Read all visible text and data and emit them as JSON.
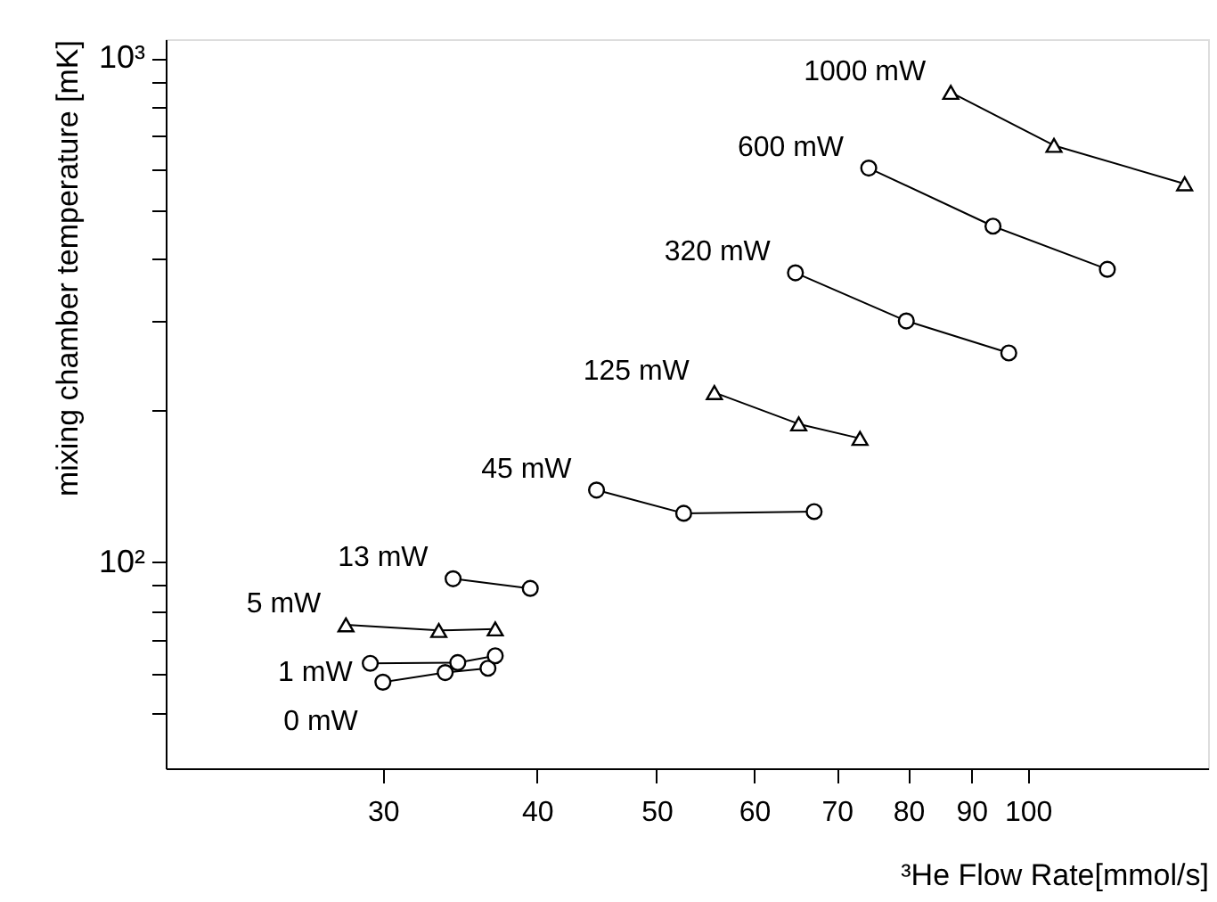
{
  "chart_data": {
    "type": "line",
    "xlabel": "³He Flow Rate[mmol/s]",
    "ylabel": "mixing chamber temperature  [mK]",
    "log": "xy",
    "grid": false,
    "line_style": "solid",
    "xlim": [
      20,
      140
    ],
    "xticks": [
      30,
      40,
      50,
      60,
      70,
      80,
      90,
      100
    ],
    "ylim": [
      39,
      1090
    ],
    "yticks": [
      {
        "value": 50,
        "label": null
      },
      {
        "value": 60,
        "label": null
      },
      {
        "value": 70,
        "label": null
      },
      {
        "value": 80,
        "label": null
      },
      {
        "value": 90,
        "label": null
      },
      {
        "value": 100,
        "label": "10²"
      },
      {
        "value": 200,
        "label": null
      },
      {
        "value": 300,
        "label": null
      },
      {
        "value": 400,
        "label": null
      },
      {
        "value": 500,
        "label": null
      },
      {
        "value": 600,
        "label": null
      },
      {
        "value": 700,
        "label": null
      },
      {
        "value": 800,
        "label": null
      },
      {
        "value": 900,
        "label": null
      },
      {
        "value": 1000,
        "label": "10³"
      }
    ],
    "series": [
      {
        "name": "0 mW",
        "color": "#000000",
        "marker": "circle",
        "x": [
          30.0,
          33.7,
          36.5
        ],
        "values": [
          57.8,
          60.4,
          61.6
        ]
      },
      {
        "name": "1 mW",
        "color": "#000000",
        "marker": "circle",
        "x": [
          29.3,
          34.5,
          37.0
        ],
        "values": [
          63.0,
          63.2,
          65.2
        ]
      },
      {
        "name": "5 mW",
        "color": "#000000",
        "marker": "triangle",
        "x": [
          28.0,
          33.3,
          37.0
        ],
        "values": [
          75.1,
          73.2,
          73.7
        ]
      },
      {
        "name": "13 mW",
        "color": "#000000",
        "marker": "circle",
        "x": [
          34.2,
          39.5
        ],
        "values": [
          92.7,
          88.7
        ]
      },
      {
        "name": "45 mW",
        "color": "#000000",
        "marker": "circle",
        "x": [
          44.7,
          52.6,
          67.1
        ],
        "values": [
          139,
          125,
          126
        ]
      },
      {
        "name": "125 mW",
        "color": "#000000",
        "marker": "triangle",
        "x": [
          55.7,
          65.2,
          73.1
        ],
        "values": [
          217,
          188,
          176
        ]
      },
      {
        "name": "320 mW",
        "color": "#000000",
        "marker": "circle",
        "x": [
          64.8,
          79.7,
          96.5
        ],
        "values": [
          375,
          301,
          260
        ]
      },
      {
        "name": "600 mW",
        "color": "#000000",
        "marker": "circle",
        "x": [
          74.3,
          93.7,
          116
        ],
        "values": [
          605,
          464,
          381
        ]
      },
      {
        "name": "1000 mW",
        "color": "#000000",
        "marker": "triangle",
        "x": [
          86.6,
          105,
          134
        ],
        "values": [
          855,
          671,
          563
        ]
      }
    ]
  }
}
